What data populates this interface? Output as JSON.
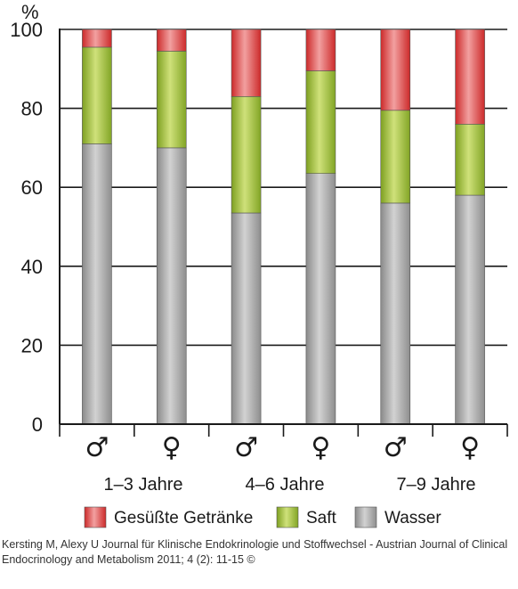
{
  "chart_data": {
    "type": "bar",
    "stacked": true,
    "unit_label": "%",
    "ylim": [
      0,
      100
    ],
    "yticks": [
      0,
      20,
      40,
      60,
      80,
      100
    ],
    "grid": true,
    "categories": [
      "♂",
      "♀",
      "♂",
      "♀",
      "♂",
      "♀"
    ],
    "groups": [
      "1–3 Jahre",
      "4–6 Jahre",
      "7–9 Jahre"
    ],
    "series": [
      {
        "name": "Wasser",
        "values": [
          71,
          70,
          53.5,
          63.5,
          56,
          58
        ],
        "color": "#a8a8a8"
      },
      {
        "name": "Saft",
        "values": [
          24.5,
          24.5,
          29.5,
          26,
          23.5,
          18
        ],
        "color": "#9bbd3a"
      },
      {
        "name": "Gesüßte Getränke",
        "values": [
          4.5,
          5.5,
          17,
          10.5,
          20.5,
          24
        ],
        "color": "#d63a3a"
      }
    ],
    "legend": [
      "Gesüßte Getränke",
      "Saft",
      "Wasser"
    ],
    "legend_position": "bottom"
  },
  "citation": "Kersting M, Alexy U Journal für Klinische Endokrinologie und Stoffwechsel - Austrian Journal of Clinical Endocrinology and Metabolism 2011; 4 (2): 11-15 ©"
}
